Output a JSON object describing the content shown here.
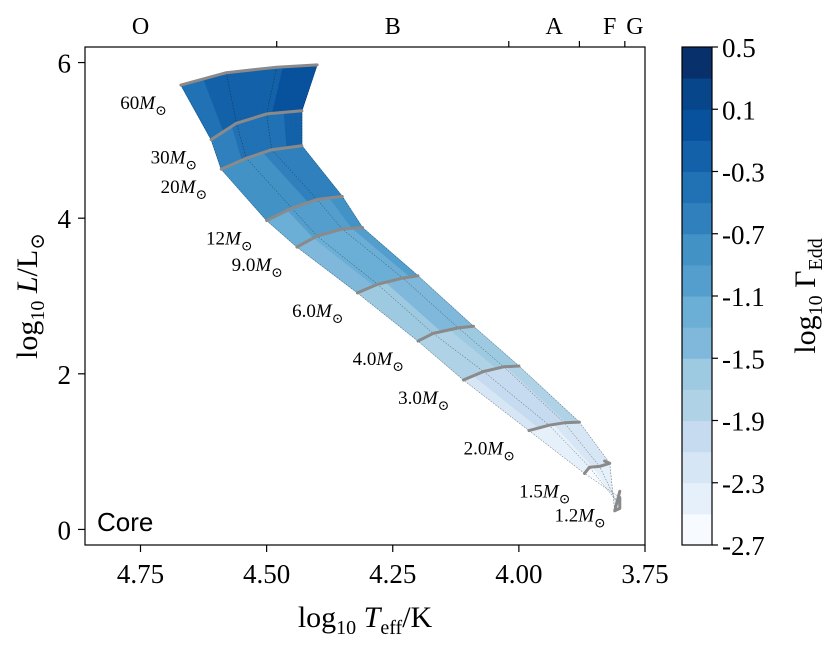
{
  "chart_data": {
    "type": "heatmap",
    "title": "",
    "xlabel_parts": {
      "pre": "log",
      "sub": "10",
      "var": "T",
      "varsub": "eff",
      "post": "/K"
    },
    "ylabel_parts": {
      "pre": "log",
      "sub": "10",
      "var": "L",
      "post": "/L",
      "odot": "⊙"
    },
    "xlim": [
      4.86,
      3.75
    ],
    "ylim": [
      -0.2,
      6.2
    ],
    "x_ticks": [
      {
        "value": 4.75,
        "label": "4.75"
      },
      {
        "value": 4.5,
        "label": "4.50"
      },
      {
        "value": 4.25,
        "label": "4.25"
      },
      {
        "value": 4.0,
        "label": "4.00"
      },
      {
        "value": 3.75,
        "label": "3.75"
      }
    ],
    "y_ticks": [
      {
        "value": 0,
        "label": "0"
      },
      {
        "value": 2,
        "label": "2"
      },
      {
        "value": 4,
        "label": "4"
      },
      {
        "value": 6,
        "label": "6"
      }
    ],
    "spectral_classes": [
      {
        "value": 4.75,
        "label": "O"
      },
      {
        "value": 4.25,
        "label": "B"
      },
      {
        "value": 3.93,
        "label": "A"
      },
      {
        "value": 3.82,
        "label": "F"
      },
      {
        "value": 3.77,
        "label": "G"
      }
    ],
    "spectral_boundaries": [
      4.48,
      4.02,
      3.88,
      3.79
    ],
    "panel_label": "Core",
    "colorbar": {
      "label_parts": {
        "pre": "log",
        "sub": "10",
        "var": "Γ",
        "varsub": "Edd"
      },
      "range": [
        -2.7,
        0.5
      ],
      "levels": 16,
      "ticks": [
        "0.5",
        "0.1",
        "-0.3",
        "-0.7",
        "-1.1",
        "-1.5",
        "-1.9",
        "-2.3",
        "-2.7"
      ],
      "colors": [
        "#f7fbff",
        "#e6f0fa",
        "#d7e6f5",
        "#c6dbef",
        "#b0d2e7",
        "#9ecae1",
        "#7fb8da",
        "#6baed6",
        "#539ecd",
        "#4292c6",
        "#3080bd",
        "#2171b5",
        "#1361a9",
        "#08519c",
        "#08468b",
        "#08306b"
      ]
    },
    "tracks": [
      {
        "mass": "60",
        "points": [
          [
            4.67,
            5.71
          ],
          [
            4.58,
            5.87
          ],
          [
            4.48,
            5.94
          ],
          [
            4.4,
            5.97
          ]
        ]
      },
      {
        "mass": "30",
        "points": [
          [
            4.61,
            5.01
          ],
          [
            4.56,
            5.22
          ],
          [
            4.5,
            5.34
          ],
          [
            4.43,
            5.38
          ]
        ]
      },
      {
        "mass": "20",
        "points": [
          [
            4.59,
            4.63
          ],
          [
            4.54,
            4.77
          ],
          [
            4.49,
            4.88
          ],
          [
            4.43,
            4.93
          ]
        ]
      },
      {
        "mass": "12",
        "points": [
          [
            4.5,
            3.97
          ],
          [
            4.45,
            4.13
          ],
          [
            4.4,
            4.24
          ],
          [
            4.35,
            4.28
          ]
        ]
      },
      {
        "mass": "9.0",
        "points": [
          [
            4.44,
            3.63
          ],
          [
            4.4,
            3.77
          ],
          [
            4.35,
            3.86
          ],
          [
            4.31,
            3.88
          ]
        ]
      },
      {
        "mass": "6.0",
        "points": [
          [
            4.32,
            3.04
          ],
          [
            4.28,
            3.15
          ],
          [
            4.23,
            3.23
          ],
          [
            4.2,
            3.26
          ]
        ]
      },
      {
        "mass": "4.0",
        "points": [
          [
            4.2,
            2.42
          ],
          [
            4.17,
            2.52
          ],
          [
            4.12,
            2.59
          ],
          [
            4.09,
            2.61
          ]
        ]
      },
      {
        "mass": "3.0",
        "points": [
          [
            4.11,
            1.92
          ],
          [
            4.07,
            2.03
          ],
          [
            4.03,
            2.09
          ],
          [
            4.0,
            2.1
          ]
        ]
      },
      {
        "mass": "2.0",
        "points": [
          [
            3.98,
            1.27
          ],
          [
            3.94,
            1.34
          ],
          [
            3.91,
            1.37
          ],
          [
            3.88,
            1.38
          ]
        ]
      },
      {
        "mass": "1.5",
        "points": [
          [
            3.87,
            0.72
          ],
          [
            3.86,
            0.8
          ],
          [
            3.84,
            0.81
          ],
          [
            3.82,
            0.85
          ],
          [
            3.83,
            0.88
          ]
        ]
      },
      {
        "mass": "1.2",
        "points": [
          [
            3.8,
            0.41
          ],
          [
            3.8,
            0.31
          ],
          [
            3.8,
            0.27
          ],
          [
            3.81,
            0.24
          ],
          [
            3.8,
            0.49
          ]
        ]
      }
    ],
    "track_label_suffix": "M",
    "gamma_at_zams": [
      -0.2,
      -0.5,
      -0.7,
      -1.1,
      -1.3,
      -1.5,
      -1.8,
      -2.0,
      -2.3,
      -2.6,
      -2.7
    ]
  }
}
